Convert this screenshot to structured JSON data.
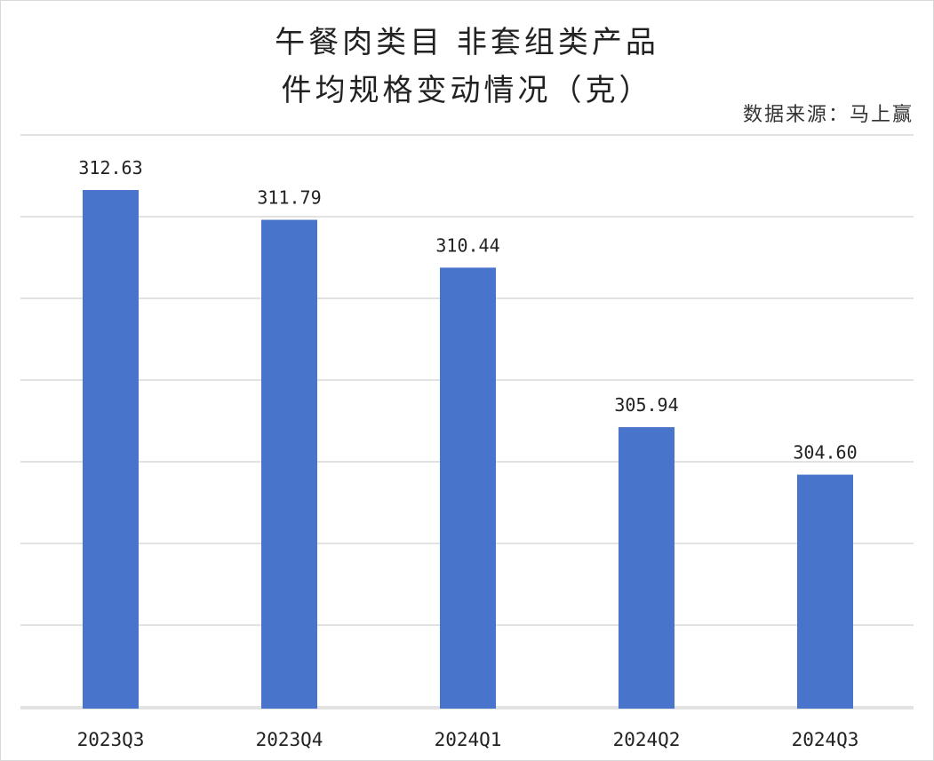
{
  "title": {
    "line1": "午餐肉类目 非套组类产品",
    "line2": "件均规格变动情况（克）"
  },
  "source": "数据来源：马上赢",
  "colors": {
    "bar": "#4874CB",
    "grid": "#D9D9D9",
    "text": "#222222"
  },
  "chart_data": {
    "type": "bar",
    "title": "午餐肉类目 非套组类产品 件均规格变动情况（克）",
    "xlabel": "",
    "ylabel": "",
    "categories": [
      "2023Q3",
      "2023Q4",
      "2024Q1",
      "2024Q2",
      "2024Q3"
    ],
    "values": [
      312.63,
      311.79,
      310.44,
      305.94,
      304.6
    ],
    "data_labels": [
      "312.63",
      "311.79",
      "310.44",
      "305.94",
      "304.60"
    ],
    "ylim": [
      298,
      312.63
    ],
    "grid": true,
    "legend": "none"
  }
}
